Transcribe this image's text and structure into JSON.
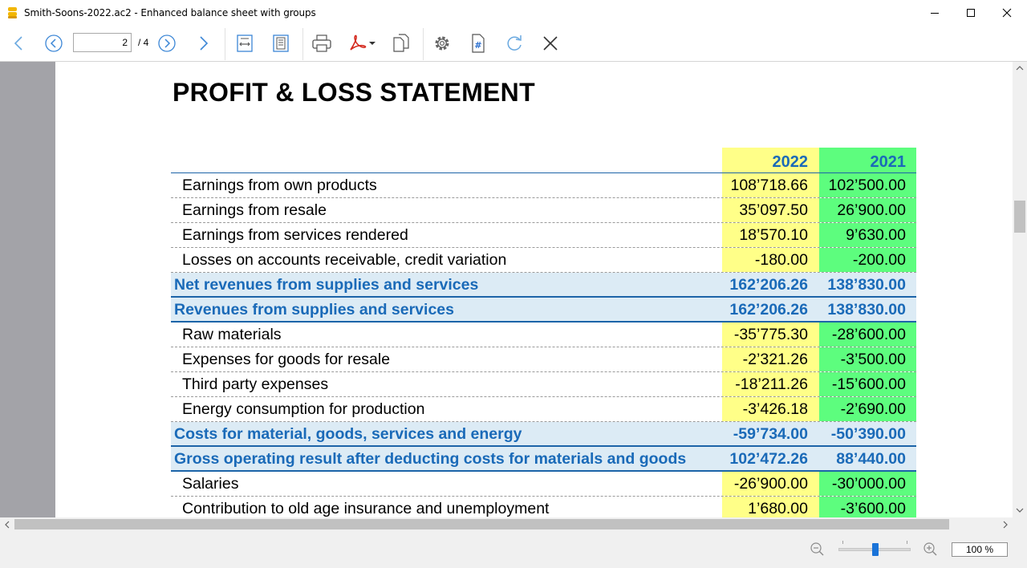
{
  "window": {
    "title": "Smith-Soons-2022.ac2 - Enhanced balance sheet with groups"
  },
  "toolbar": {
    "page_current": "2",
    "page_total": "/ 4"
  },
  "report": {
    "title": "PROFIT & LOSS STATEMENT",
    "col_2022": "2022",
    "col_2021": "2021",
    "rows": [
      {
        "type": "detail",
        "desc": "Earnings from own products",
        "v2022": "108’718.66",
        "v2021": "102’500.00"
      },
      {
        "type": "detail",
        "desc": "Earnings from resale",
        "v2022": "35’097.50",
        "v2021": "26’900.00"
      },
      {
        "type": "detail",
        "desc": "Earnings from services rendered",
        "v2022": "18’570.10",
        "v2021": "9’630.00"
      },
      {
        "type": "detail",
        "desc": "Losses on accounts receivable, credit variation",
        "v2022": "-180.00",
        "v2021": "-200.00"
      },
      {
        "type": "total",
        "desc": "Net revenues from supplies and services",
        "v2022": "162’206.26",
        "v2021": "138’830.00"
      },
      {
        "type": "total",
        "desc": "Revenues from supplies and services",
        "v2022": "162’206.26",
        "v2021": "138’830.00"
      },
      {
        "type": "detail",
        "desc": "Raw materials",
        "v2022": "-35’775.30",
        "v2021": "-28’600.00"
      },
      {
        "type": "detail",
        "desc": "Expenses for goods for resale",
        "v2022": "-2’321.26",
        "v2021": "-3’500.00"
      },
      {
        "type": "detail",
        "desc": "Third party expenses",
        "v2022": "-18’211.26",
        "v2021": "-15’600.00"
      },
      {
        "type": "detail",
        "desc": "Energy consumption for production",
        "v2022": "-3’426.18",
        "v2021": "-2’690.00"
      },
      {
        "type": "total",
        "desc": "Costs for material, goods, services and energy",
        "v2022": "-59’734.00",
        "v2021": "-50’390.00"
      },
      {
        "type": "total",
        "desc": "Gross operating result after deducting costs for materials and goods",
        "v2022": "102’472.26",
        "v2021": "88’440.00"
      },
      {
        "type": "detail",
        "desc": "Salaries",
        "v2022": "-26’900.00",
        "v2021": "-30’000.00"
      },
      {
        "type": "detail",
        "desc": "Contribution to old age insurance and unemployment",
        "v2022": "1’680.00",
        "v2021": "-3’600.00"
      }
    ]
  },
  "statusbar": {
    "zoom": "100 %"
  },
  "colors": {
    "col_2022_bg": "#ffff88",
    "col_2021_bg": "#5dfd7e",
    "total_text": "#1a6ab8",
    "total_bg": "#dcebf5"
  }
}
